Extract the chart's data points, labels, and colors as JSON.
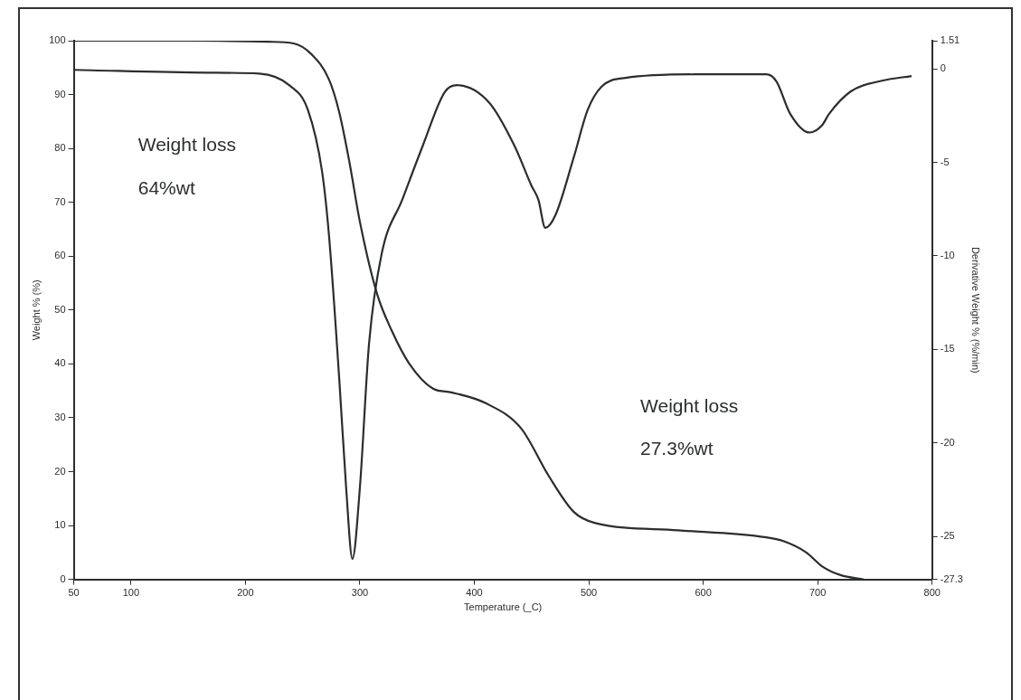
{
  "chart_data": {
    "type": "line",
    "xlabel": "Temperature (_C)",
    "ylabel": "Weight % (%)",
    "y2label": "Derivative Weight % (%/min)",
    "xlim": [
      50,
      800
    ],
    "xticks": [
      50,
      100,
      200,
      300,
      400,
      500,
      600,
      700,
      800
    ],
    "ylim": [
      0,
      100
    ],
    "yticks": [
      0,
      10,
      20,
      30,
      40,
      50,
      60,
      70,
      80,
      90,
      100
    ],
    "y2lim": [
      -27.3,
      1.51
    ],
    "y2ticks": [
      -27.3,
      -25,
      -20,
      -15,
      -10,
      -5,
      0,
      1.51
    ],
    "grid": false,
    "legend": false,
    "marker": "none",
    "line_style": "solid",
    "series": [
      {
        "color": "#2a2e2c",
        "x": [
          50,
          150,
          220,
          242,
          257.6,
          273,
          282,
          291,
          300,
          315,
          328,
          343,
          364,
          380,
          410,
          441,
          465,
          487,
          505,
          578,
          655,
          670,
          690,
          704,
          720,
          740
        ],
        "values": [
          100,
          100,
          99.8,
          99.5,
          97.5,
          92.8,
          86.7,
          77.3,
          66.4,
          53,
          46.1,
          40.1,
          35.4,
          34.7,
          32.7,
          28,
          19.2,
          12.5,
          10.5,
          9.1,
          7.8,
          7.1,
          5,
          2.4,
          0.8,
          0
        ]
      },
      {
        "color": "#2a2e2c",
        "axis": "y2",
        "x": [
          50,
          166,
          212,
          239,
          254.6,
          267,
          273,
          282,
          288,
          293.5,
          300,
          308,
          319,
          337,
          355,
          374,
          385,
          413,
          435,
          450,
          456,
          462,
          471,
          487,
          499,
          511,
          532,
          593.5,
          655,
          664,
          676,
          693,
          704,
          710,
          729,
          757,
          782
        ],
        "values": [
          -0.05,
          -0.2,
          -0.25,
          -0.9,
          -2.2,
          -5.5,
          -8.9,
          -16.6,
          -22.4,
          -26.2,
          -22.4,
          -14.7,
          -9.9,
          -7,
          -4.1,
          -1.25,
          -0.87,
          -1.8,
          -4.1,
          -6.25,
          -7,
          -8.5,
          -7.8,
          -4.7,
          -2.2,
          -0.96,
          -0.48,
          -0.29,
          -0.29,
          -0.67,
          -2.4,
          -3.4,
          -3,
          -2.4,
          -1.2,
          -0.62,
          -0.38
        ]
      }
    ],
    "annotations": [
      "Weight loss",
      "64%wt",
      "Weight loss",
      "27.3%wt"
    ]
  }
}
